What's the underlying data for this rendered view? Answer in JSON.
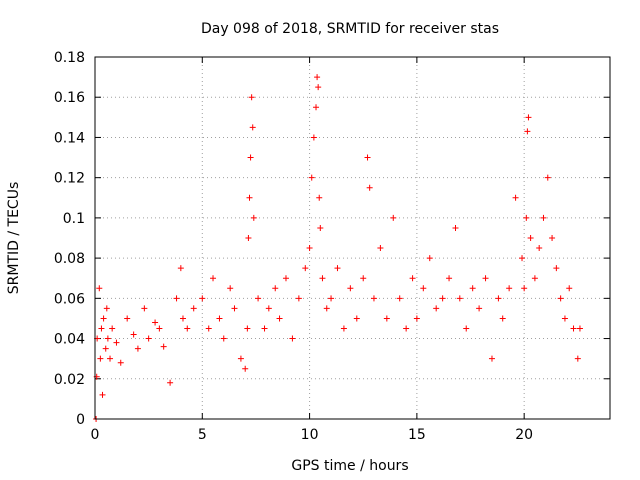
{
  "chart_data": {
    "type": "scatter",
    "title": "Day 098 of 2018, SRMTID for receiver stas",
    "xlabel": "GPS time / hours",
    "ylabel": "SRMTID / TECUs",
    "xlim": [
      0,
      24
    ],
    "ylim": [
      0,
      0.18
    ],
    "xticks": [
      "0",
      "5",
      "10",
      "15",
      "20"
    ],
    "yticks": [
      "0",
      "0.02",
      "0.04",
      "0.06",
      "0.08",
      "0.1",
      "0.12",
      "0.14",
      "0.16",
      "0.18"
    ],
    "grid": true,
    "marker": "plus",
    "color": "#ff0000",
    "series": [
      {
        "name": "SRMTID",
        "x": [
          0.05,
          0.08,
          0.1,
          0.2,
          0.25,
          0.3,
          0.35,
          0.4,
          0.5,
          0.55,
          0.6,
          0.7,
          0.8,
          1.0,
          1.2,
          1.5,
          1.8,
          2.0,
          2.3,
          2.5,
          2.8,
          3.0,
          3.2,
          3.5,
          3.8,
          4.0,
          4.1,
          4.3,
          4.6,
          5.0,
          5.3,
          5.5,
          5.8,
          6.0,
          6.3,
          6.5,
          6.8,
          7.0,
          7.1,
          7.15,
          7.2,
          7.25,
          7.3,
          7.35,
          7.4,
          7.6,
          7.9,
          8.1,
          8.4,
          8.6,
          8.9,
          9.2,
          9.5,
          9.8,
          10.0,
          10.1,
          10.2,
          10.3,
          10.35,
          10.4,
          10.45,
          10.5,
          10.6,
          10.8,
          11.0,
          11.3,
          11.6,
          11.9,
          12.2,
          12.5,
          12.7,
          12.8,
          13.0,
          13.3,
          13.6,
          13.9,
          14.2,
          14.5,
          14.8,
          15.0,
          15.3,
          15.6,
          15.9,
          16.2,
          16.5,
          16.8,
          17.0,
          17.3,
          17.6,
          17.9,
          18.2,
          18.5,
          18.8,
          19.0,
          19.3,
          19.6,
          19.9,
          20.0,
          20.1,
          20.15,
          20.2,
          20.3,
          20.5,
          20.7,
          20.9,
          21.1,
          21.3,
          21.5,
          21.7,
          21.9,
          22.1,
          22.3,
          22.5,
          22.6
        ],
        "y": [
          0.0,
          0.021,
          0.04,
          0.065,
          0.03,
          0.045,
          0.012,
          0.05,
          0.035,
          0.055,
          0.04,
          0.03,
          0.045,
          0.038,
          0.028,
          0.05,
          0.042,
          0.035,
          0.055,
          0.04,
          0.048,
          0.045,
          0.036,
          0.018,
          0.06,
          0.075,
          0.05,
          0.045,
          0.055,
          0.06,
          0.045,
          0.07,
          0.05,
          0.04,
          0.065,
          0.055,
          0.03,
          0.025,
          0.045,
          0.09,
          0.11,
          0.13,
          0.16,
          0.145,
          0.1,
          0.06,
          0.045,
          0.055,
          0.065,
          0.05,
          0.07,
          0.04,
          0.06,
          0.075,
          0.085,
          0.12,
          0.14,
          0.155,
          0.17,
          0.165,
          0.11,
          0.095,
          0.07,
          0.055,
          0.06,
          0.075,
          0.045,
          0.065,
          0.05,
          0.07,
          0.13,
          0.115,
          0.06,
          0.085,
          0.05,
          0.1,
          0.06,
          0.045,
          0.07,
          0.05,
          0.065,
          0.08,
          0.055,
          0.06,
          0.07,
          0.095,
          0.06,
          0.045,
          0.065,
          0.055,
          0.07,
          0.03,
          0.06,
          0.05,
          0.065,
          0.11,
          0.08,
          0.065,
          0.1,
          0.143,
          0.15,
          0.09,
          0.07,
          0.085,
          0.1,
          0.12,
          0.09,
          0.075,
          0.06,
          0.05,
          0.065,
          0.045,
          0.03,
          0.045
        ]
      }
    ]
  }
}
